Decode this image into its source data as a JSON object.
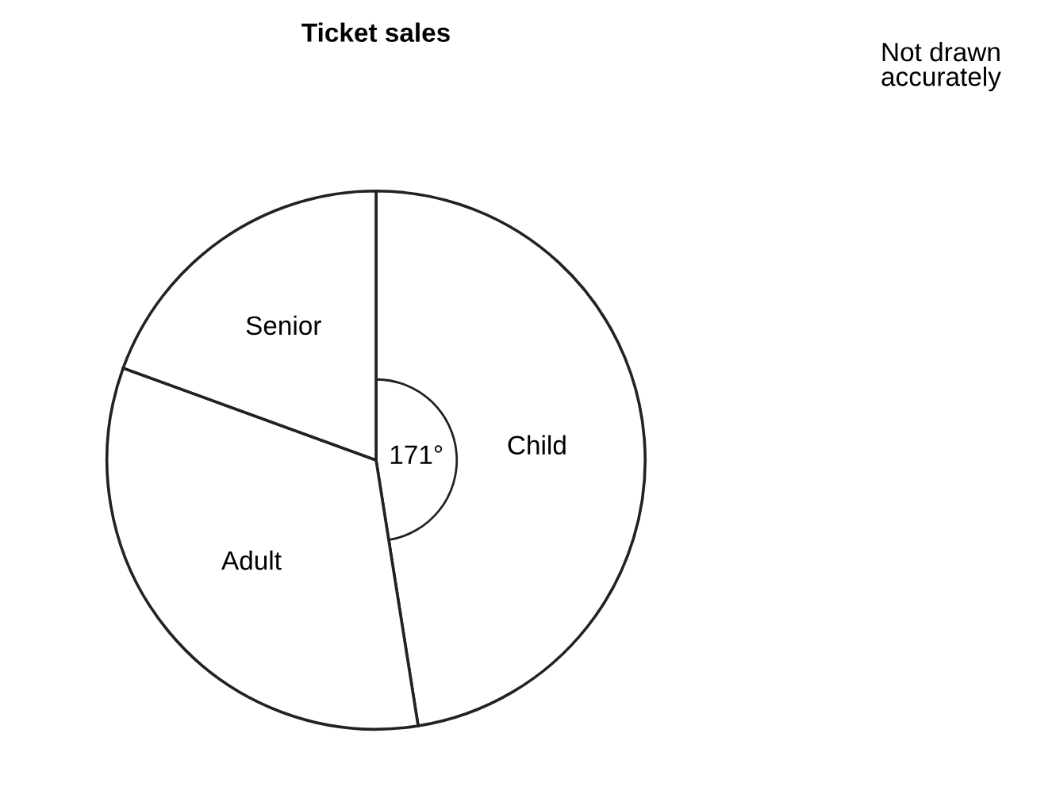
{
  "chart_data": {
    "type": "pie",
    "title": "Ticket sales",
    "categories": [
      "Child",
      "Adult",
      "Senior"
    ],
    "values": [
      171,
      119,
      70
    ],
    "colors": [
      "#ffffff",
      "#ffffff",
      "#ffffff"
    ],
    "value_labels": [
      "171°",
      null,
      null
    ],
    "annotations": [
      "Not drawn\naccurately"
    ]
  }
}
